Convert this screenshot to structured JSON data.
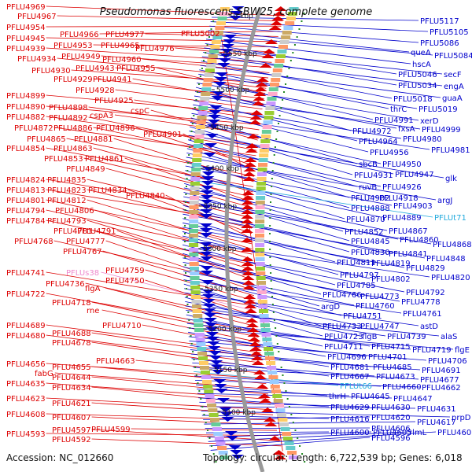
{
  "title": "Pseudomonas fluorescens SBW25, complete genome",
  "footer": {
    "accession": "Accession: NC_012660",
    "topology": "Topology: circular; Length: 6,722,539 bp; Genes: 6,018"
  },
  "colors": {
    "left_genes": "#dd0000",
    "right_genes": "#0000cc",
    "rna_labels": "#ee88cc",
    "special_labels": "#22aadd",
    "backbone": "#999999",
    "dots": "#228822"
  },
  "kbp_ticks": [
    {
      "label": "0 kbp",
      "kbp": 0
    },
    {
      "label": "5550 kbp",
      "kbp": 5550
    },
    {
      "label": "5500 kbp",
      "kbp": 5500
    },
    {
      "label": "5450 kbp",
      "kbp": 5450
    },
    {
      "label": "5400 kbp",
      "kbp": 5400
    },
    {
      "label": "5350 kbp",
      "kbp": 5350
    },
    {
      "label": "5300 kbp",
      "kbp": 5300
    },
    {
      "label": "5250 kbp",
      "kbp": 5250
    },
    {
      "label": "5200 kbp",
      "kbp": 5200
    },
    {
      "label": "5150 kbp",
      "kbp": 5150
    },
    {
      "label": "5100 kbp",
      "kbp": 5100
    }
  ],
  "left_labels": [
    [
      "PFLU4969",
      8,
      12,
      "g"
    ],
    [
      "PFLU4967",
      22,
      24,
      "g"
    ],
    [
      "PFLU4954",
      8,
      38,
      "g"
    ],
    [
      "PFLU4966",
      76,
      47,
      "g"
    ],
    [
      "PFLU4977",
      134,
      47,
      "g"
    ],
    [
      "PFLU4945",
      8,
      52,
      "g"
    ],
    [
      "PFLU4953",
      68,
      61,
      "g"
    ],
    [
      "PFLU4965",
      128,
      61,
      "g"
    ],
    [
      "PFLU4976",
      172,
      65,
      "g"
    ],
    [
      "PFLU4939",
      8,
      65,
      "g"
    ],
    [
      "PFLU4949",
      78,
      75,
      "g"
    ],
    [
      "PFLU4960",
      130,
      79,
      "g"
    ],
    [
      "PFLU4934",
      22,
      78,
      "g"
    ],
    [
      "PFLU4930",
      40,
      93,
      "g"
    ],
    [
      "PFLU4943",
      96,
      90,
      "g"
    ],
    [
      "PFLU4955",
      148,
      90,
      "g"
    ],
    [
      "PFLU4929",
      68,
      104,
      "g"
    ],
    [
      "PFLU4941",
      118,
      104,
      "g"
    ],
    [
      "PFLU4928",
      96,
      118,
      "g"
    ],
    [
      "PFLU4899",
      8,
      125,
      "g"
    ],
    [
      "PFLU4925",
      120,
      131,
      "g"
    ],
    [
      "PFLU4890",
      8,
      139,
      "g"
    ],
    [
      "PFLU4898",
      62,
      140,
      "g"
    ],
    [
      "cspA3",
      114,
      150,
      "g"
    ],
    [
      "cspC",
      166,
      144,
      "g"
    ],
    [
      "PFLU4882",
      8,
      152,
      "g"
    ],
    [
      "PFLU4892",
      62,
      153,
      "g"
    ],
    [
      "PFLU4872",
      18,
      166,
      "g"
    ],
    [
      "PFLU4886",
      68,
      166,
      "g"
    ],
    [
      "PFLU4896",
      122,
      166,
      "g"
    ],
    [
      "PFLU4901",
      182,
      174,
      "g"
    ],
    [
      "PFLU4865",
      34,
      180,
      "g"
    ],
    [
      "PFLU4881",
      94,
      180,
      "g"
    ],
    [
      "PFLU4854",
      8,
      192,
      "g"
    ],
    [
      "PFLU4863",
      68,
      192,
      "g"
    ],
    [
      "PFLU4853",
      56,
      205,
      "g"
    ],
    [
      "PFLU4861",
      108,
      205,
      "g"
    ],
    [
      "PFLU4849",
      84,
      218,
      "g"
    ],
    [
      "PFLU4824",
      8,
      232,
      "g"
    ],
    [
      "PFLU4835",
      60,
      232,
      "g"
    ],
    [
      "PFLU4813",
      8,
      245,
      "g"
    ],
    [
      "PFLU4823",
      60,
      245,
      "g"
    ],
    [
      "PFLU4834",
      112,
      245,
      "g"
    ],
    [
      "PFLU4840",
      160,
      252,
      "g"
    ],
    [
      "PFLU4801",
      8,
      258,
      "g"
    ],
    [
      "PFLU4812",
      60,
      258,
      "g"
    ],
    [
      "PFLU4794",
      8,
      271,
      "g"
    ],
    [
      "PFLU4806",
      70,
      271,
      "g"
    ],
    [
      "PFLU4784",
      8,
      284,
      "g"
    ],
    [
      "PFLU4793",
      60,
      284,
      "g"
    ],
    [
      "PFLU4781",
      68,
      297,
      "g"
    ],
    [
      "PFLU4791",
      98,
      297,
      "g"
    ],
    [
      "PFLU4768",
      18,
      310,
      "g"
    ],
    [
      "PFLU4777",
      84,
      310,
      "g"
    ],
    [
      "PFLU4767",
      80,
      323,
      "g"
    ],
    [
      "PFLU4759",
      134,
      347,
      "g"
    ],
    [
      "PFLU4741",
      8,
      350,
      "g"
    ],
    [
      "PFLUs38",
      84,
      350,
      "r"
    ],
    [
      "PFLU4750",
      134,
      360,
      "g"
    ],
    [
      "PFLU4736",
      58,
      364,
      "g"
    ],
    [
      "flgA",
      108,
      370,
      "g"
    ],
    [
      "PFLU4722",
      8,
      377,
      "g"
    ],
    [
      "PFLU4718",
      66,
      388,
      "g"
    ],
    [
      "rne",
      110,
      398,
      "g"
    ],
    [
      "PFLU4710",
      130,
      417,
      "g"
    ],
    [
      "PFLU4689",
      8,
      417,
      "g"
    ],
    [
      "PFLU4688",
      66,
      427,
      "g"
    ],
    [
      "PFLU4680",
      8,
      430,
      "g"
    ],
    [
      "PFLU4678",
      66,
      439,
      "g"
    ],
    [
      "PFLU4663",
      122,
      462,
      "g"
    ],
    [
      "PFLU4656",
      8,
      466,
      "g"
    ],
    [
      "PFLU4655",
      66,
      470,
      "g"
    ],
    [
      "fabG",
      44,
      478,
      "g"
    ],
    [
      "PFLU4644",
      66,
      483,
      "g"
    ],
    [
      "PFLU4635",
      8,
      491,
      "g"
    ],
    [
      "PFLU4634",
      66,
      496,
      "g"
    ],
    [
      "PFLU4623",
      8,
      510,
      "g"
    ],
    [
      "PFLU4621",
      66,
      516,
      "g"
    ],
    [
      "PFLU4608",
      8,
      530,
      "g"
    ],
    [
      "PFLU4607",
      66,
      534,
      "g"
    ],
    [
      "PFLU4599",
      116,
      549,
      "g"
    ],
    [
      "PFLU4593",
      8,
      555,
      "g"
    ],
    [
      "PFLU4597",
      66,
      550,
      "g"
    ],
    [
      "PFLU4592",
      66,
      562,
      "g"
    ],
    [
      "PFLU5002",
      230,
      46,
      "g"
    ]
  ],
  "right_labels": [
    [
      "PFLU5117",
      534,
      30,
      "g"
    ],
    [
      "PFLU5105",
      546,
      44,
      "g"
    ],
    [
      "PFLU5086",
      534,
      58,
      "g"
    ],
    [
      "queA",
      522,
      70,
      "g"
    ],
    [
      "PFLU5084",
      552,
      74,
      "g"
    ],
    [
      "hscA",
      524,
      85,
      "g"
    ],
    [
      "PFLU5046",
      506,
      98,
      "g"
    ],
    [
      "secF",
      564,
      98,
      "g"
    ],
    [
      "PFLU5034",
      506,
      112,
      "g"
    ],
    [
      "engA",
      564,
      113,
      "g"
    ],
    [
      "PFLU5018",
      500,
      129,
      "g"
    ],
    [
      "guaA",
      562,
      128,
      "g"
    ],
    [
      "thrC",
      496,
      142,
      "g"
    ],
    [
      "PFLU5019",
      532,
      142,
      "g"
    ],
    [
      "PFLU4991",
      476,
      156,
      "g"
    ],
    [
      "xerD",
      534,
      157,
      "g"
    ],
    [
      "PFLU4972",
      448,
      170,
      "g"
    ],
    [
      "fxsA",
      506,
      167,
      "g"
    ],
    [
      "PFLU4999",
      536,
      168,
      "g"
    ],
    [
      "PFLU4964",
      456,
      183,
      "g"
    ],
    [
      "PFLU4980",
      512,
      180,
      "g"
    ],
    [
      "PFLU4956",
      470,
      197,
      "g"
    ],
    [
      "PFLU4981",
      548,
      194,
      "g"
    ],
    [
      "sbcB",
      456,
      212,
      "g"
    ],
    [
      "PFLU4950",
      486,
      212,
      "g"
    ],
    [
      "PFLU4931",
      450,
      226,
      "g"
    ],
    [
      "PFLU4947",
      502,
      225,
      "g"
    ],
    [
      "glk",
      566,
      230,
      "g"
    ],
    [
      "ruvB",
      456,
      241,
      "g"
    ],
    [
      "PFLU4926",
      486,
      241,
      "g"
    ],
    [
      "PFLU4902",
      446,
      255,
      "g"
    ],
    [
      "PFLU4918",
      482,
      255,
      "g"
    ],
    [
      "argJ",
      556,
      258,
      "g"
    ],
    [
      "PFLU4888",
      446,
      268,
      "g"
    ],
    [
      "PFLU4903",
      500,
      265,
      "g"
    ],
    [
      "PFLU4870",
      440,
      282,
      "g"
    ],
    [
      "PFLU4889",
      486,
      280,
      "g"
    ],
    [
      "PFLUt71",
      552,
      280,
      "s"
    ],
    [
      "PFLU4852",
      438,
      298,
      "g"
    ],
    [
      "PFLU4867",
      494,
      297,
      "g"
    ],
    [
      "PFLU4845",
      446,
      310,
      "g"
    ],
    [
      "PFLU4860",
      508,
      308,
      "g"
    ],
    [
      "PFLU4868",
      550,
      314,
      "g"
    ],
    [
      "PFLU4830",
      446,
      324,
      "g"
    ],
    [
      "PFLU4841",
      494,
      326,
      "g"
    ],
    [
      "PFLU4848",
      542,
      332,
      "g"
    ],
    [
      "PFLU4811",
      428,
      337,
      "g"
    ],
    [
      "PFLU4819",
      472,
      338,
      "g"
    ],
    [
      "PFLU4829",
      516,
      344,
      "g"
    ],
    [
      "PFLU4797",
      432,
      353,
      "g"
    ],
    [
      "PFLU4802",
      472,
      358,
      "g"
    ],
    [
      "PFLU4820",
      548,
      356,
      "g"
    ],
    [
      "PFLU4785",
      428,
      366,
      "g"
    ],
    [
      "PFLU4792",
      516,
      375,
      "g"
    ],
    [
      "PFLU4766",
      410,
      378,
      "g"
    ],
    [
      "PFLU4773",
      458,
      380,
      "g"
    ],
    [
      "PFLU4778",
      510,
      387,
      "g"
    ],
    [
      "argD",
      408,
      393,
      "g"
    ],
    [
      "PFLU4760",
      452,
      392,
      "g"
    ],
    [
      "PFLU4751",
      436,
      405,
      "g"
    ],
    [
      "PFLU4761",
      512,
      402,
      "g"
    ],
    [
      "PFLU4733",
      410,
      418,
      "g"
    ],
    [
      "PFLU4747",
      458,
      418,
      "g"
    ],
    [
      "astD",
      534,
      418,
      "g"
    ],
    [
      "PFLU4723",
      412,
      431,
      "g"
    ],
    [
      "flgB",
      460,
      431,
      "g"
    ],
    [
      "PFLU4739",
      492,
      431,
      "g"
    ],
    [
      "alaS",
      560,
      431,
      "g"
    ],
    [
      "PFLU4711",
      412,
      444,
      "g"
    ],
    [
      "PFLU4715",
      472,
      444,
      "g"
    ],
    [
      "PFLU4719",
      524,
      448,
      "g"
    ],
    [
      "flgE",
      578,
      448,
      "g"
    ],
    [
      "PFLU4696",
      416,
      457,
      "g"
    ],
    [
      "PFLU4701",
      468,
      457,
      "g"
    ],
    [
      "PFLU4706",
      544,
      462,
      "g"
    ],
    [
      "PFLU4681",
      420,
      470,
      "g"
    ],
    [
      "PFLU4685",
      474,
      470,
      "g"
    ],
    [
      "PFLU4691",
      536,
      474,
      "g"
    ],
    [
      "PFLU4667",
      420,
      482,
      "g"
    ],
    [
      "PFLU4673",
      478,
      482,
      "g"
    ],
    [
      "PFLU4677",
      534,
      486,
      "g"
    ],
    [
      "PFLUt66",
      432,
      494,
      "s"
    ],
    [
      "PFLU4660",
      486,
      495,
      "g"
    ],
    [
      "PFLU4662",
      536,
      496,
      "g"
    ],
    [
      "thrH",
      418,
      507,
      "g"
    ],
    [
      "PFLU4645",
      446,
      507,
      "g"
    ],
    [
      "PFLU4647",
      500,
      510,
      "g"
    ],
    [
      "PFLU4629",
      420,
      521,
      "g"
    ],
    [
      "PFLU4630",
      472,
      521,
      "g"
    ],
    [
      "PFLU4631",
      530,
      523,
      "g"
    ],
    [
      "prpD",
      574,
      534,
      "g"
    ],
    [
      "PFLU4616",
      420,
      536,
      "g"
    ],
    [
      "PFLU4620",
      472,
      534,
      "g"
    ],
    [
      "PFLU4617",
      530,
      540,
      "g"
    ],
    [
      "PFLU4606",
      472,
      548,
      "g"
    ],
    [
      "PFLU4600",
      420,
      553,
      "g"
    ],
    [
      "PFLU4605",
      474,
      553,
      "g"
    ],
    [
      "rlmL",
      520,
      553,
      "g"
    ],
    [
      "PFLU4603",
      556,
      553,
      "g"
    ],
    [
      "PFLU4596",
      472,
      560,
      "g"
    ]
  ]
}
